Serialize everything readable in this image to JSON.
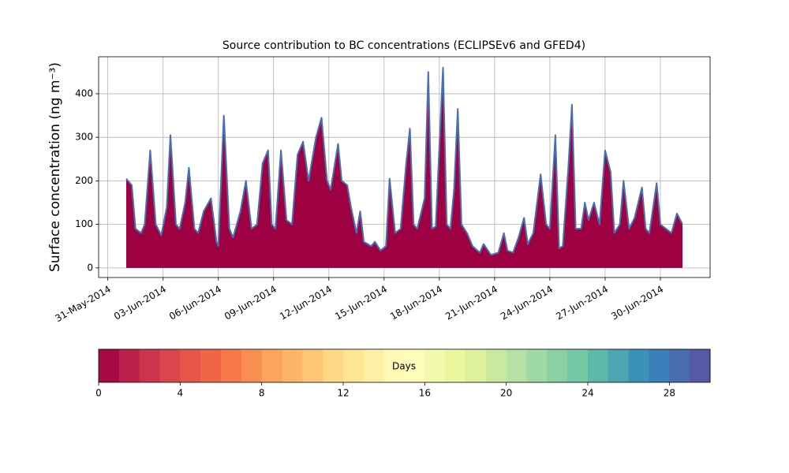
{
  "chart_data": {
    "type": "area",
    "title": "Source contribution to BC concentrations (ECLIPSEv6 and GFED4)",
    "ylabel": "Surface concentration (ng m⁻³)",
    "x": [
      1.0,
      1.3,
      1.5,
      1.8,
      2.0,
      2.3,
      2.6,
      2.9,
      3.2,
      3.4,
      3.7,
      3.9,
      4.2,
      4.4,
      4.7,
      4.9,
      5.2,
      5.6,
      5.9,
      6.0,
      6.3,
      6.6,
      6.8,
      7.2,
      7.5,
      7.8,
      8.1,
      8.4,
      8.7,
      8.9,
      9.1,
      9.4,
      9.7,
      10.0,
      10.3,
      10.6,
      10.9,
      11.3,
      11.6,
      11.9,
      12.1,
      12.5,
      12.7,
      13.0,
      13.2,
      13.5,
      13.7,
      13.9,
      14.3,
      14.5,
      14.8,
      15.1,
      15.3,
      15.6,
      15.9,
      16.2,
      16.4,
      16.6,
      16.8,
      17.2,
      17.4,
      17.6,
      17.8,
      18.0,
      18.2,
      18.4,
      18.6,
      18.8,
      19.0,
      19.2,
      19.5,
      19.8,
      20.2,
      20.4,
      20.8,
      21.2,
      21.5,
      21.7,
      22.0,
      22.3,
      22.6,
      22.8,
      23.1,
      23.5,
      23.8,
      24.0,
      24.3,
      24.5,
      24.7,
      25.0,
      25.2,
      25.4,
      25.7,
      25.9,
      26.1,
      26.4,
      26.7,
      27.0,
      27.3,
      27.5,
      27.8,
      28.0,
      28.3,
      28.6,
      29.0,
      29.2,
      29.4,
      29.8,
      30.0,
      30.3,
      30.6,
      30.9,
      31.2
    ],
    "series": [
      {
        "color": "#9e0142",
        "line_color": "#4a6fb0",
        "values": [
          205,
          190,
          90,
          80,
          100,
          270,
          100,
          75,
          140,
          305,
          100,
          90,
          150,
          230,
          90,
          80,
          130,
          160,
          60,
          50,
          350,
          90,
          70,
          130,
          200,
          90,
          100,
          240,
          270,
          100,
          90,
          270,
          110,
          100,
          260,
          290,
          200,
          300,
          345,
          200,
          180,
          285,
          200,
          190,
          140,
          80,
          130,
          60,
          50,
          60,
          40,
          50,
          205,
          80,
          90,
          240,
          320,
          100,
          90,
          160,
          450,
          90,
          95,
          280,
          460,
          100,
          90,
          180,
          365,
          100,
          80,
          50,
          35,
          55,
          30,
          35,
          80,
          40,
          35,
          70,
          115,
          55,
          80,
          215,
          100,
          90,
          305,
          45,
          50,
          230,
          375,
          90,
          90,
          150,
          110,
          150,
          100,
          270,
          220,
          80,
          100,
          200,
          90,
          115,
          185,
          90,
          80,
          195,
          100,
          90,
          80,
          125,
          100
        ]
      }
    ],
    "xlim": [
      -0.5,
      32.7
    ],
    "xticks": [
      {
        "value": 0,
        "label": "31-May-2014"
      },
      {
        "value": 3,
        "label": "03-Jun-2014"
      },
      {
        "value": 6,
        "label": "06-Jun-2014"
      },
      {
        "value": 9,
        "label": "09-Jun-2014"
      },
      {
        "value": 12,
        "label": "12-Jun-2014"
      },
      {
        "value": 15,
        "label": "15-Jun-2014"
      },
      {
        "value": 18,
        "label": "18-Jun-2014"
      },
      {
        "value": 21,
        "label": "21-Jun-2014"
      },
      {
        "value": 24,
        "label": "24-Jun-2014"
      },
      {
        "value": 27,
        "label": "27-Jun-2014"
      },
      {
        "value": 30,
        "label": "30-Jun-2014"
      }
    ],
    "ylim": [
      -22,
      485
    ],
    "yticks": [
      0,
      100,
      200,
      300,
      400
    ],
    "grid": true,
    "colorbar": {
      "label": "Days",
      "lim": [
        0,
        30
      ],
      "ticks": [
        0,
        4,
        8,
        12,
        16,
        20,
        24,
        28
      ],
      "colormap": [
        "#9e0142",
        "#d53e4f",
        "#f46d43",
        "#fdae61",
        "#fee08b",
        "#ffffbf",
        "#e6f598",
        "#abdda4",
        "#66c2a5",
        "#3288bd",
        "#5e4fa2"
      ]
    }
  }
}
